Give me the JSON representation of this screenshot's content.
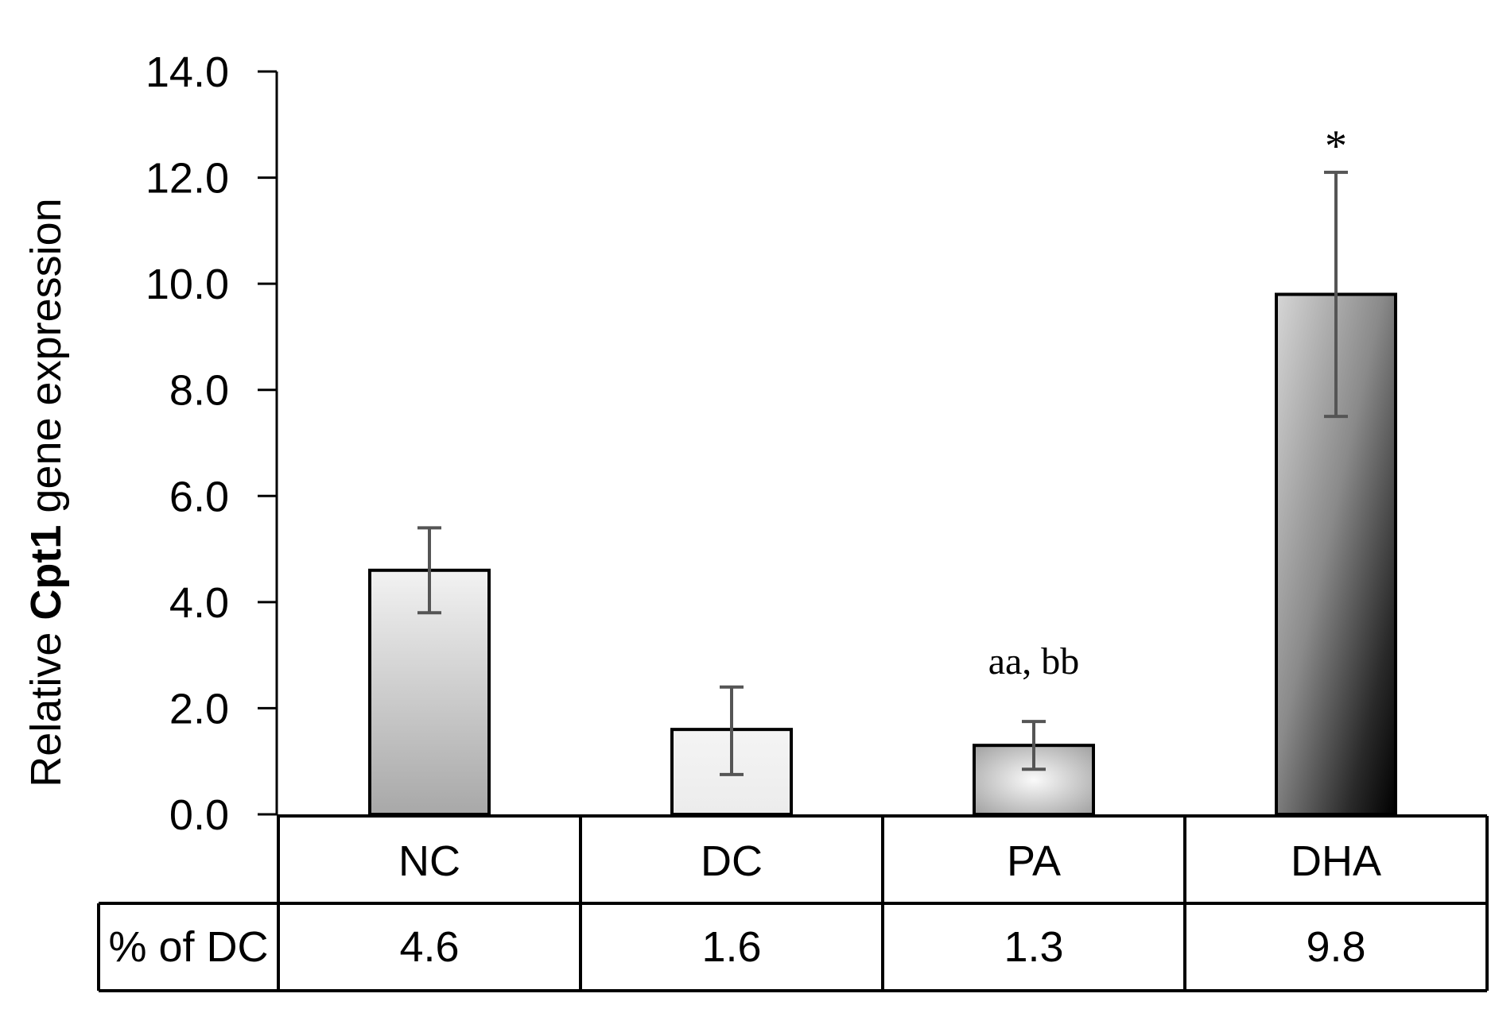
{
  "chart_data": {
    "type": "bar",
    "categories": [
      "NC",
      "DC",
      "PA",
      "DHA"
    ],
    "values": [
      4.6,
      1.6,
      1.3,
      9.8
    ],
    "error_high": [
      5.4,
      2.4,
      1.75,
      12.1
    ],
    "error_low": [
      3.8,
      0.75,
      0.85,
      7.5
    ],
    "annotations": [
      "",
      "",
      "aa, bb",
      "*"
    ],
    "ylabel_prefix": "Relative ",
    "ylabel_gene": "Cpt1",
    "ylabel_suffix": " gene  expression",
    "ylim": [
      0,
      14
    ],
    "yticks": [
      "0.0",
      "2.0",
      "4.0",
      "6.0",
      "8.0",
      "10.0",
      "12.0",
      "14.0"
    ],
    "table_row_label": "% of DC",
    "table_row_values": [
      "4.6",
      "1.6",
      "1.3",
      "9.8"
    ],
    "grid": false,
    "legend": "none"
  }
}
